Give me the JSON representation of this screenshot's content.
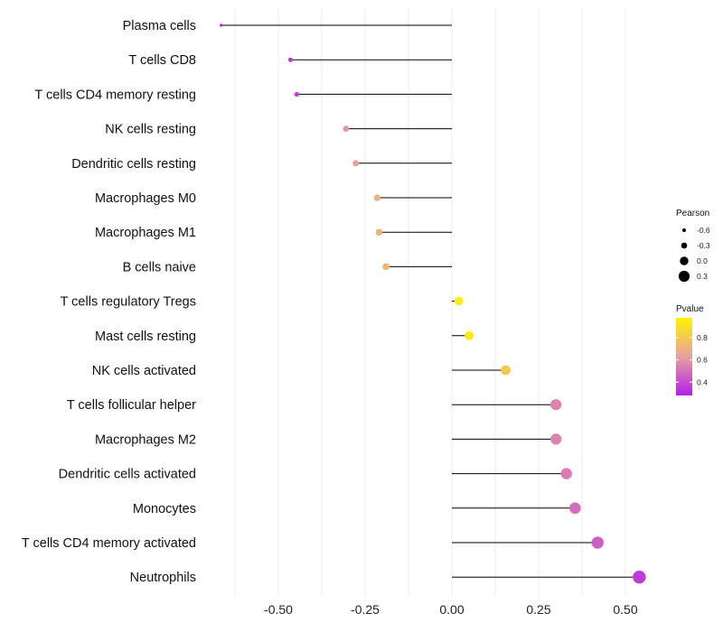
{
  "chart_data": {
    "type": "lollipop",
    "orientation": "horizontal",
    "title": "",
    "xlabel": "",
    "ylabel": "",
    "xlim": [
      -0.75,
      0.58
    ],
    "x_ticks": [
      -0.5,
      -0.25,
      0.0,
      0.25,
      0.5
    ],
    "x_tick_labels": [
      "-0.50",
      "-0.25",
      "0.00",
      "0.25",
      "0.50"
    ],
    "grid": "vertical",
    "categories": [
      "Plasma cells",
      "T cells CD8",
      "T cells CD4 memory resting",
      "NK cells resting",
      "Dendritic cells resting",
      "Macrophages M0",
      "Macrophages M1",
      "B cells naive",
      "T cells regulatory  Tregs",
      "Mast cells resting",
      "NK cells activated",
      "T cells follicular helper",
      "Macrophages M2",
      "Dendritic cells activated",
      "Monocytes",
      "T cells CD4 memory activated",
      "Neutrophils"
    ],
    "values": [
      -0.665,
      -0.465,
      -0.447,
      -0.305,
      -0.277,
      -0.215,
      -0.21,
      -0.19,
      0.02,
      0.05,
      0.155,
      0.3,
      0.3,
      0.33,
      0.355,
      0.42,
      0.54
    ],
    "pvalues": [
      0.3,
      0.35,
      0.37,
      0.6,
      0.63,
      0.7,
      0.71,
      0.72,
      0.97,
      0.95,
      0.8,
      0.55,
      0.55,
      0.53,
      0.5,
      0.45,
      0.35
    ],
    "legend_size": {
      "title": "Pearson",
      "labels": [
        "-0.6",
        "-0.3",
        "0.0",
        "0.3"
      ],
      "values": [
        -0.6,
        -0.3,
        0.0,
        0.3
      ]
    },
    "legend_color": {
      "title": "Pvalue",
      "labels": [
        "0.8",
        "0.6",
        "0.4"
      ],
      "values": [
        0.8,
        0.6,
        0.4
      ],
      "range": [
        0.28,
        0.98
      ]
    },
    "colors": {
      "low": "#b320e8",
      "mid": "#e8a0a0",
      "high": "#fff200",
      "stem": "#000000",
      "grid": "#ebebeb"
    },
    "legend_position": "right"
  }
}
